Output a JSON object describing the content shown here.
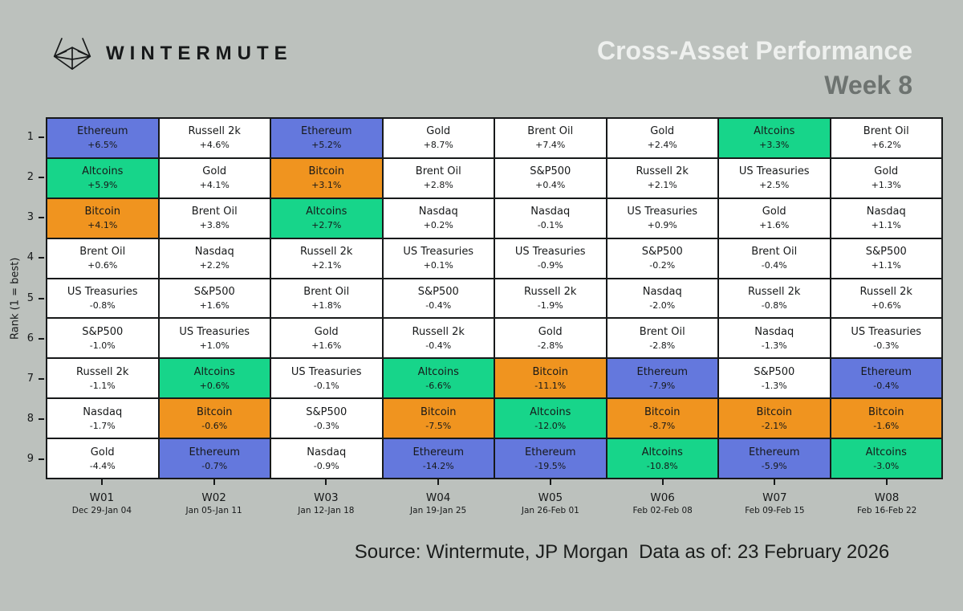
{
  "header": {
    "logo_text": "WINTERMUTE",
    "title": "Cross-Asset Performance",
    "subtitle": "Week 8"
  },
  "footer": {
    "source_text": "Source: Wintermute, JP Morgan  Data as of: 23 February 2026"
  },
  "colors": {
    "background": "#bcc1bd",
    "gridline": "#17191a",
    "title_text": "#eef0ee",
    "subtitle_text": "#6d7370"
  },
  "chart_data": {
    "type": "heatmap",
    "subtype": "ranked-quilt-table",
    "title": "Cross-Asset Performance",
    "subtitle": "Week 8",
    "ylabel": "Rank (1 = best)",
    "ranks": [
      1,
      2,
      3,
      4,
      5,
      6,
      7,
      8,
      9
    ],
    "weeks": [
      {
        "label": "W01",
        "range": "Dec 29-Jan 04"
      },
      {
        "label": "W02",
        "range": "Jan 05-Jan 11"
      },
      {
        "label": "W03",
        "range": "Jan 12-Jan 18"
      },
      {
        "label": "W04",
        "range": "Jan 19-Jan 25"
      },
      {
        "label": "W05",
        "range": "Jan 26-Feb 01"
      },
      {
        "label": "W06",
        "range": "Feb 02-Feb 08"
      },
      {
        "label": "W07",
        "range": "Feb 09-Feb 15"
      },
      {
        "label": "W08",
        "range": "Feb 16-Feb 22"
      }
    ],
    "colors": {
      "Ethereum": "#6478dd",
      "Altcoins": "#17d58a",
      "Bitcoin": "#f0941f",
      "default": "#ffffff"
    },
    "grid": [
      [
        {
          "asset": "Ethereum",
          "pct": "+6.5%"
        },
        {
          "asset": "Russell 2k",
          "pct": "+4.6%"
        },
        {
          "asset": "Ethereum",
          "pct": "+5.2%"
        },
        {
          "asset": "Gold",
          "pct": "+8.7%"
        },
        {
          "asset": "Brent Oil",
          "pct": "+7.4%"
        },
        {
          "asset": "Gold",
          "pct": "+2.4%"
        },
        {
          "asset": "Altcoins",
          "pct": "+3.3%"
        },
        {
          "asset": "Brent Oil",
          "pct": "+6.2%"
        }
      ],
      [
        {
          "asset": "Altcoins",
          "pct": "+5.9%"
        },
        {
          "asset": "Gold",
          "pct": "+4.1%"
        },
        {
          "asset": "Bitcoin",
          "pct": "+3.1%"
        },
        {
          "asset": "Brent Oil",
          "pct": "+2.8%"
        },
        {
          "asset": "S&P500",
          "pct": "+0.4%"
        },
        {
          "asset": "Russell 2k",
          "pct": "+2.1%"
        },
        {
          "asset": "US Treasuries",
          "pct": "+2.5%"
        },
        {
          "asset": "Gold",
          "pct": "+1.3%"
        }
      ],
      [
        {
          "asset": "Bitcoin",
          "pct": "+4.1%"
        },
        {
          "asset": "Brent Oil",
          "pct": "+3.8%"
        },
        {
          "asset": "Altcoins",
          "pct": "+2.7%"
        },
        {
          "asset": "Nasdaq",
          "pct": "+0.2%"
        },
        {
          "asset": "Nasdaq",
          "pct": "-0.1%"
        },
        {
          "asset": "US Treasuries",
          "pct": "+0.9%"
        },
        {
          "asset": "Gold",
          "pct": "+1.6%"
        },
        {
          "asset": "Nasdaq",
          "pct": "+1.1%"
        }
      ],
      [
        {
          "asset": "Brent Oil",
          "pct": "+0.6%"
        },
        {
          "asset": "Nasdaq",
          "pct": "+2.2%"
        },
        {
          "asset": "Russell 2k",
          "pct": "+2.1%"
        },
        {
          "asset": "US Treasuries",
          "pct": "+0.1%"
        },
        {
          "asset": "US Treasuries",
          "pct": "-0.9%"
        },
        {
          "asset": "S&P500",
          "pct": "-0.2%"
        },
        {
          "asset": "Brent Oil",
          "pct": "-0.4%"
        },
        {
          "asset": "S&P500",
          "pct": "+1.1%"
        }
      ],
      [
        {
          "asset": "US Treasuries",
          "pct": "-0.8%"
        },
        {
          "asset": "S&P500",
          "pct": "+1.6%"
        },
        {
          "asset": "Brent Oil",
          "pct": "+1.8%"
        },
        {
          "asset": "S&P500",
          "pct": "-0.4%"
        },
        {
          "asset": "Russell 2k",
          "pct": "-1.9%"
        },
        {
          "asset": "Nasdaq",
          "pct": "-2.0%"
        },
        {
          "asset": "Russell 2k",
          "pct": "-0.8%"
        },
        {
          "asset": "Russell 2k",
          "pct": "+0.6%"
        }
      ],
      [
        {
          "asset": "S&P500",
          "pct": "-1.0%"
        },
        {
          "asset": "US Treasuries",
          "pct": "+1.0%"
        },
        {
          "asset": "Gold",
          "pct": "+1.6%"
        },
        {
          "asset": "Russell 2k",
          "pct": "-0.4%"
        },
        {
          "asset": "Gold",
          "pct": "-2.8%"
        },
        {
          "asset": "Brent Oil",
          "pct": "-2.8%"
        },
        {
          "asset": "Nasdaq",
          "pct": "-1.3%"
        },
        {
          "asset": "US Treasuries",
          "pct": "-0.3%"
        }
      ],
      [
        {
          "asset": "Russell 2k",
          "pct": "-1.1%"
        },
        {
          "asset": "Altcoins",
          "pct": "+0.6%"
        },
        {
          "asset": "US Treasuries",
          "pct": "-0.1%"
        },
        {
          "asset": "Altcoins",
          "pct": "-6.6%"
        },
        {
          "asset": "Bitcoin",
          "pct": "-11.1%"
        },
        {
          "asset": "Ethereum",
          "pct": "-7.9%"
        },
        {
          "asset": "S&P500",
          "pct": "-1.3%"
        },
        {
          "asset": "Ethereum",
          "pct": "-0.4%"
        }
      ],
      [
        {
          "asset": "Nasdaq",
          "pct": "-1.7%"
        },
        {
          "asset": "Bitcoin",
          "pct": "-0.6%"
        },
        {
          "asset": "S&P500",
          "pct": "-0.3%"
        },
        {
          "asset": "Bitcoin",
          "pct": "-7.5%"
        },
        {
          "asset": "Altcoins",
          "pct": "-12.0%"
        },
        {
          "asset": "Bitcoin",
          "pct": "-8.7%"
        },
        {
          "asset": "Bitcoin",
          "pct": "-2.1%"
        },
        {
          "asset": "Bitcoin",
          "pct": "-1.6%"
        }
      ],
      [
        {
          "asset": "Gold",
          "pct": "-4.4%"
        },
        {
          "asset": "Ethereum",
          "pct": "-0.7%"
        },
        {
          "asset": "Nasdaq",
          "pct": "-0.9%"
        },
        {
          "asset": "Ethereum",
          "pct": "-14.2%"
        },
        {
          "asset": "Ethereum",
          "pct": "-19.5%"
        },
        {
          "asset": "Altcoins",
          "pct": "-10.8%"
        },
        {
          "asset": "Ethereum",
          "pct": "-5.9%"
        },
        {
          "asset": "Altcoins",
          "pct": "-3.0%"
        }
      ]
    ]
  }
}
